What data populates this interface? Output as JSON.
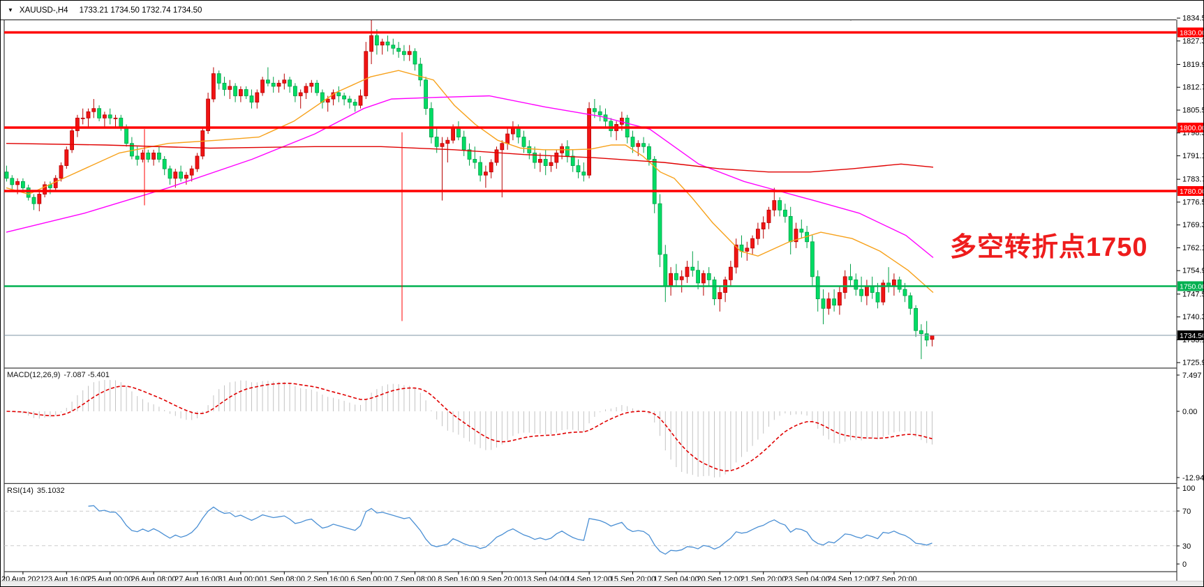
{
  "header": {
    "dropdown_icon": "▼",
    "symbol_period": "XAUUSD-,H4",
    "ohlc": "1733.21 1734.50 1732.74 1734.50"
  },
  "annotation": {
    "text": "多空转折点1750",
    "color": "#ee1c1c"
  },
  "price_axis": {
    "ticks": [
      "1834.50",
      "1827.30",
      "1819.90",
      "1812.70",
      "1805.50",
      "1798.30",
      "1791.10",
      "1783.70",
      "1776.50",
      "1769.30",
      "1762.10",
      "1754.90",
      "1747.50",
      "1740.30",
      "1733.10",
      "1725.90"
    ]
  },
  "time_axis": {
    "labels": [
      "20 Aug 2021",
      "23 Aug 16:00",
      "25 Aug 00:00",
      "26 Aug 08:00",
      "27 Aug 16:00",
      "31 Aug 00:00",
      "1 Sep 08:00",
      "2 Sep 16:00",
      "6 Sep 00:00",
      "7 Sep 08:00",
      "8 Sep 16:00",
      "9 Sep 20:00",
      "13 Sep 04:00",
      "14 Sep 12:00",
      "15 Sep 20:00",
      "17 Sep 04:00",
      "20 Sep 12:00",
      "21 Sep 20:00",
      "23 Sep 04:00",
      "24 Sep 12:00",
      "27 Sep 20:00"
    ]
  },
  "macd_panel": {
    "name": "MACD(12,26,9)",
    "values": "-7.087 -5.401",
    "axis": [
      "7.497",
      "0.00",
      "-12.941"
    ],
    "histogram_color": "#c3c3c3",
    "signal_color": "#e00000"
  },
  "rsi_panel": {
    "name": "RSI(14)",
    "value": "35.1032",
    "axis": [
      "100",
      "70",
      "30",
      "0"
    ],
    "line_color": "#4a8fd4",
    "level_color": "#cccccc"
  },
  "chart_data": {
    "type": "candlestick",
    "symbol": "XAUUSD-",
    "timeframe": "H4",
    "ylim": [
      1722.3,
      1839.9
    ],
    "bars_per_label": 8,
    "up_color": "#f01414",
    "up_border": "#b80000",
    "down_color": "#00dc64",
    "down_border": "#00a047",
    "candles": [
      [
        1786,
        1788,
        1783,
        1784
      ],
      [
        1784,
        1785,
        1780,
        1782
      ],
      [
        1782,
        1784,
        1779,
        1783
      ],
      [
        1783,
        1784,
        1780,
        1781
      ],
      [
        1781,
        1782,
        1777,
        1778
      ],
      [
        1778,
        1779,
        1774,
        1776
      ],
      [
        1776,
        1780,
        1773.6,
        1779
      ],
      [
        1779,
        1783,
        1778,
        1782
      ],
      [
        1782,
        1783,
        1779,
        1781
      ],
      [
        1781,
        1785,
        1780,
        1784
      ],
      [
        1784,
        1789,
        1783,
        1788
      ],
      [
        1788,
        1794,
        1787,
        1793
      ],
      [
        1793,
        1800,
        1792,
        1799
      ],
      [
        1799,
        1804,
        1797,
        1803
      ],
      [
        1803,
        1806,
        1801,
        1803
      ],
      [
        1803,
        1806,
        1800,
        1805
      ],
      [
        1805,
        1809,
        1803,
        1806
      ],
      [
        1806,
        1807,
        1802,
        1803
      ],
      [
        1803,
        1805,
        1800,
        1804
      ],
      [
        1804,
        1806,
        1801,
        1803
      ],
      [
        1803,
        1804,
        1800,
        1803
      ],
      [
        1803,
        1804,
        1799,
        1800
      ],
      [
        1800,
        1801,
        1794,
        1795
      ],
      [
        1795,
        1797,
        1790,
        1791
      ],
      [
        1791,
        1794,
        1788,
        1790
      ],
      [
        1790,
        1793,
        1789,
        1792
      ],
      [
        1792,
        1793,
        1789,
        1790
      ],
      [
        1790,
        1793,
        1788,
        1792
      ],
      [
        1792,
        1794,
        1789,
        1790
      ],
      [
        1790,
        1791,
        1785,
        1787
      ],
      [
        1787,
        1788,
        1782,
        1784
      ],
      [
        1784,
        1787,
        1781,
        1786
      ],
      [
        1786,
        1788,
        1783,
        1784
      ],
      [
        1784,
        1786,
        1782,
        1785
      ],
      [
        1785,
        1788,
        1783,
        1787
      ],
      [
        1787,
        1792,
        1786,
        1791
      ],
      [
        1791,
        1800,
        1790,
        1799
      ],
      [
        1799,
        1811,
        1798,
        1809
      ],
      [
        1809,
        1819,
        1808,
        1817
      ],
      [
        1817,
        1818,
        1812,
        1814
      ],
      [
        1814,
        1816,
        1810,
        1812
      ],
      [
        1812,
        1815,
        1809,
        1813
      ],
      [
        1813,
        1814,
        1808,
        1810
      ],
      [
        1810,
        1813,
        1808,
        1812
      ],
      [
        1812,
        1813,
        1809,
        1810
      ],
      [
        1810,
        1812,
        1806,
        1808
      ],
      [
        1808,
        1812,
        1806,
        1811
      ],
      [
        1811,
        1816,
        1810,
        1815
      ],
      [
        1815,
        1819,
        1813,
        1814
      ],
      [
        1814,
        1816,
        1811,
        1813
      ],
      [
        1813,
        1815,
        1811,
        1814
      ],
      [
        1814,
        1817,
        1812,
        1815
      ],
      [
        1815,
        1816,
        1811,
        1813
      ],
      [
        1813,
        1814,
        1808,
        1810
      ],
      [
        1810,
        1812,
        1806,
        1811
      ],
      [
        1811,
        1814,
        1809,
        1813
      ],
      [
        1813,
        1815,
        1811,
        1814
      ],
      [
        1814,
        1815,
        1810,
        1811
      ],
      [
        1811,
        1812,
        1806,
        1808
      ],
      [
        1808,
        1810,
        1805,
        1809
      ],
      [
        1809,
        1812,
        1807,
        1811
      ],
      [
        1811,
        1813,
        1808,
        1810
      ],
      [
        1810,
        1811,
        1807,
        1809
      ],
      [
        1809,
        1810,
        1806,
        1808
      ],
      [
        1808,
        1809,
        1805,
        1807
      ],
      [
        1807,
        1812,
        1806,
        1810
      ],
      [
        1810,
        1827,
        1809,
        1824
      ],
      [
        1824,
        1834.5,
        1820,
        1829
      ],
      [
        1829,
        1831,
        1823,
        1826
      ],
      [
        1826,
        1828,
        1823,
        1827
      ],
      [
        1827,
        1829,
        1824,
        1826
      ],
      [
        1826,
        1828,
        1823,
        1825
      ],
      [
        1825,
        1827,
        1822,
        1824
      ],
      [
        1824,
        1826,
        1821,
        1823
      ],
      [
        1823,
        1826,
        1821,
        1824
      ],
      [
        1824,
        1825,
        1818,
        1820
      ],
      [
        1820,
        1822,
        1813,
        1815
      ],
      [
        1815,
        1816,
        1804,
        1806
      ],
      [
        1806,
        1808,
        1795,
        1797
      ],
      [
        1797,
        1800,
        1792,
        1794
      ],
      [
        1794,
        1797,
        1777,
        1795
      ],
      [
        1795,
        1797,
        1789,
        1796
      ],
      [
        1796,
        1801,
        1795,
        1800
      ],
      [
        1800,
        1802,
        1796,
        1797
      ],
      [
        1797,
        1799,
        1791,
        1793
      ],
      [
        1793,
        1795,
        1788,
        1790
      ],
      [
        1790,
        1794,
        1787,
        1789
      ],
      [
        1789,
        1791,
        1783,
        1785
      ],
      [
        1785,
        1788,
        1781,
        1786
      ],
      [
        1786,
        1790,
        1784,
        1789
      ],
      [
        1789,
        1794,
        1788,
        1793
      ],
      [
        1793,
        1796,
        1778,
        1795
      ],
      [
        1795,
        1800,
        1793,
        1798
      ],
      [
        1798,
        1802,
        1796,
        1800
      ],
      [
        1800,
        1801,
        1795,
        1797
      ],
      [
        1797,
        1799,
        1792,
        1794
      ],
      [
        1794,
        1796,
        1790,
        1792
      ],
      [
        1792,
        1794,
        1787,
        1789
      ],
      [
        1789,
        1792,
        1786,
        1790
      ],
      [
        1790,
        1793,
        1785,
        1788
      ],
      [
        1788,
        1791,
        1786,
        1789
      ],
      [
        1789,
        1793,
        1787,
        1792
      ],
      [
        1792,
        1795,
        1790,
        1794
      ],
      [
        1794,
        1796,
        1789,
        1791
      ],
      [
        1791,
        1793,
        1786,
        1788
      ],
      [
        1788,
        1790,
        1784,
        1786
      ],
      [
        1786,
        1789,
        1783,
        1785
      ],
      [
        1785,
        1808,
        1784,
        1806
      ],
      [
        1806,
        1809,
        1803,
        1805
      ],
      [
        1805,
        1807,
        1802,
        1804
      ],
      [
        1804,
        1806,
        1800,
        1802
      ],
      [
        1802,
        1803,
        1797,
        1799
      ],
      [
        1799,
        1802,
        1796,
        1801
      ],
      [
        1801,
        1805,
        1799,
        1803
      ],
      [
        1803,
        1804,
        1795,
        1797
      ],
      [
        1797,
        1799,
        1792,
        1794
      ],
      [
        1794,
        1796,
        1791,
        1795
      ],
      [
        1795,
        1797,
        1792,
        1794
      ],
      [
        1794,
        1795,
        1788,
        1790
      ],
      [
        1790,
        1791,
        1773,
        1776
      ],
      [
        1776,
        1779,
        1756,
        1760
      ],
      [
        1760,
        1763,
        1745,
        1750
      ],
      [
        1750,
        1756,
        1747,
        1754
      ],
      [
        1754,
        1757,
        1750,
        1752
      ],
      [
        1752,
        1755,
        1748,
        1753
      ],
      [
        1753,
        1758,
        1751,
        1756
      ],
      [
        1756,
        1761,
        1753,
        1755
      ],
      [
        1755,
        1758,
        1749,
        1751
      ],
      [
        1751,
        1755,
        1747,
        1754
      ],
      [
        1754,
        1756,
        1750,
        1752
      ],
      [
        1752,
        1753,
        1744,
        1746
      ],
      [
        1746,
        1750,
        1742,
        1748
      ],
      [
        1748,
        1753,
        1745,
        1752
      ],
      [
        1752,
        1758,
        1750,
        1756
      ],
      [
        1756,
        1765,
        1754,
        1763
      ],
      [
        1763,
        1766,
        1759,
        1761
      ],
      [
        1761,
        1764,
        1758,
        1762
      ],
      [
        1762,
        1766,
        1760,
        1765
      ],
      [
        1765,
        1770,
        1763,
        1768
      ],
      [
        1768,
        1772,
        1765,
        1770
      ],
      [
        1770,
        1775,
        1768,
        1774
      ],
      [
        1774,
        1781,
        1772,
        1777
      ],
      [
        1777,
        1778,
        1772,
        1774
      ],
      [
        1774,
        1776,
        1770,
        1772
      ],
      [
        1772,
        1775,
        1760,
        1764
      ],
      [
        1764,
        1770,
        1762,
        1768
      ],
      [
        1768,
        1771,
        1765,
        1767
      ],
      [
        1767,
        1769,
        1762,
        1764
      ],
      [
        1764,
        1766,
        1750,
        1753
      ],
      [
        1753,
        1755,
        1742,
        1746
      ],
      [
        1746,
        1749,
        1738,
        1743
      ],
      [
        1743,
        1748,
        1741,
        1746
      ],
      [
        1746,
        1749,
        1742,
        1744
      ],
      [
        1744,
        1750,
        1741,
        1748
      ],
      [
        1748,
        1755,
        1746,
        1753
      ],
      [
        1753,
        1757,
        1750,
        1752
      ],
      [
        1752,
        1754,
        1747,
        1749
      ],
      [
        1749,
        1753,
        1745,
        1747
      ],
      [
        1747,
        1752,
        1744,
        1750
      ],
      [
        1750,
        1753,
        1746,
        1748
      ],
      [
        1748,
        1751,
        1743,
        1745
      ],
      [
        1745,
        1752,
        1744,
        1751
      ],
      [
        1751,
        1756,
        1748,
        1750
      ],
      [
        1750,
        1754,
        1747,
        1752
      ],
      [
        1752,
        1753,
        1748,
        1749
      ],
      [
        1749,
        1751,
        1745,
        1747
      ],
      [
        1747,
        1748,
        1741,
        1743
      ],
      [
        1743,
        1744,
        1734,
        1736
      ],
      [
        1736,
        1738,
        1727,
        1735
      ],
      [
        1735,
        1739,
        1731,
        1733
      ],
      [
        1733.21,
        1734.5,
        1731,
        1734.5
      ]
    ],
    "hlines": [
      {
        "price": 1830,
        "label": "1830.00",
        "color": "#ff0000",
        "width": 3.5,
        "role": "resistance"
      },
      {
        "price": 1800,
        "label": "1800.00",
        "color": "#ff0000",
        "width": 3.5,
        "role": "resistance"
      },
      {
        "price": 1780,
        "label": "1780.00",
        "color": "#ff0000",
        "width": 3.5,
        "role": "support"
      },
      {
        "price": 1750,
        "label": "1750.00",
        "color": "#00b050",
        "width": 2.5,
        "role": "key-level"
      }
    ],
    "current_price": {
      "value": 1734.5,
      "label": "1734.50",
      "line_color": "#7d95a6",
      "badge_bg": "#000000"
    },
    "vlines": [
      {
        "x": 206,
        "from": 1799.5,
        "to": 1775.5,
        "color": "#ff0000"
      },
      {
        "x": 575,
        "from": 1798.5,
        "to": 1739,
        "color": "#ff0000"
      }
    ],
    "moving_averages": [
      {
        "name": "ma-fast-orange",
        "color": "#f7a11a",
        "points": [
          [
            8,
            1781
          ],
          [
            40,
            1779
          ],
          [
            100,
            1785
          ],
          [
            170,
            1792
          ],
          [
            240,
            1795
          ],
          [
            310,
            1796
          ],
          [
            370,
            1797
          ],
          [
            420,
            1802
          ],
          [
            480,
            1811
          ],
          [
            530,
            1816
          ],
          [
            570,
            1818
          ],
          [
            620,
            1815
          ],
          [
            650,
            1807
          ],
          [
            680,
            1801
          ],
          [
            712,
            1796
          ],
          [
            745,
            1793.5
          ],
          [
            778,
            1793
          ],
          [
            815,
            1793
          ],
          [
            845,
            1793.2
          ],
          [
            875,
            1794.5
          ],
          [
            895,
            1794.5
          ],
          [
            920,
            1791
          ],
          [
            945,
            1786
          ],
          [
            965,
            1784
          ],
          [
            990,
            1778
          ],
          [
            1020,
            1770
          ],
          [
            1060,
            1761
          ],
          [
            1085,
            1759.5
          ],
          [
            1130,
            1764
          ],
          [
            1175,
            1767
          ],
          [
            1220,
            1765
          ],
          [
            1260,
            1761
          ],
          [
            1300,
            1755
          ],
          [
            1336,
            1748
          ]
        ]
      },
      {
        "name": "ma-mid-magenta",
        "color": "#ff00ff",
        "points": [
          [
            8,
            1767
          ],
          [
            120,
            1773
          ],
          [
            240,
            1781
          ],
          [
            360,
            1790
          ],
          [
            450,
            1798
          ],
          [
            520,
            1806
          ],
          [
            560,
            1809
          ],
          [
            620,
            1809.5
          ],
          [
            700,
            1810
          ],
          [
            780,
            1806.5
          ],
          [
            860,
            1803.5
          ],
          [
            930,
            1799.5
          ],
          [
            1000,
            1788.5
          ],
          [
            1065,
            1783
          ],
          [
            1115,
            1780
          ],
          [
            1165,
            1777
          ],
          [
            1230,
            1773
          ],
          [
            1297,
            1766
          ],
          [
            1336,
            1759
          ]
        ]
      },
      {
        "name": "ma-slow-red",
        "color": "#e00000",
        "points": [
          [
            8,
            1795
          ],
          [
            150,
            1794.5
          ],
          [
            300,
            1793.5
          ],
          [
            450,
            1794
          ],
          [
            545,
            1794
          ],
          [
            650,
            1793
          ],
          [
            750,
            1791.5
          ],
          [
            850,
            1790.5
          ],
          [
            950,
            1789
          ],
          [
            1030,
            1787
          ],
          [
            1100,
            1786
          ],
          [
            1160,
            1786
          ],
          [
            1220,
            1787
          ],
          [
            1290,
            1788.5
          ],
          [
            1336,
            1787.5
          ]
        ]
      }
    ],
    "indicators": {
      "macd": {
        "fast": 12,
        "slow": 26,
        "signal": 9,
        "current": -7.087,
        "current_signal": -5.401,
        "range_max": 7.497,
        "range_min": -12.941
      },
      "rsi": {
        "period": 14,
        "current": 35.1032,
        "levels": [
          70,
          30
        ]
      }
    }
  }
}
